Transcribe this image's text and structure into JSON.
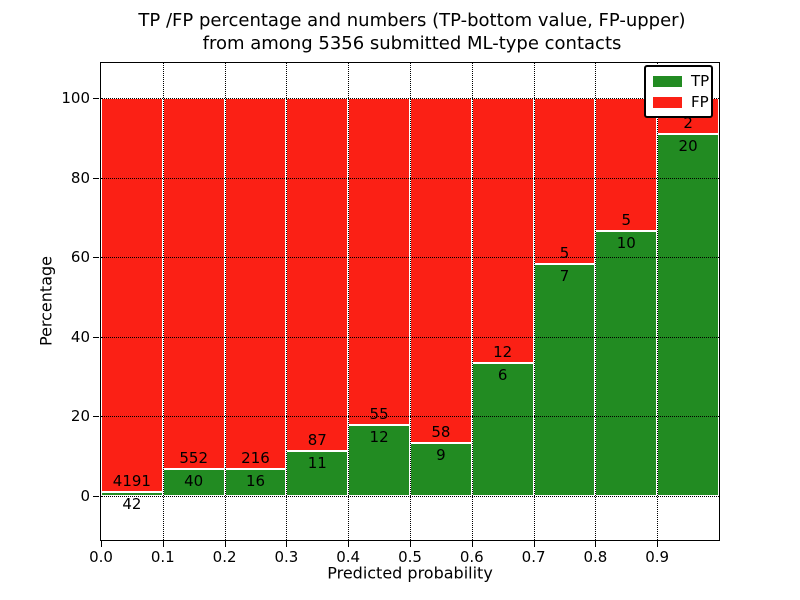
{
  "title": {
    "line1": "TP /FP percentage and numbers (TP-bottom value, FP-upper)",
    "line2": "from among 5356 submitted ML-type contacts"
  },
  "axes": {
    "xlabel": "Predicted probability",
    "ylabel": "Percentage",
    "x_ticks": [
      "0.0",
      "0.1",
      "0.2",
      "0.3",
      "0.4",
      "0.5",
      "0.6",
      "0.7",
      "0.8",
      "0.9"
    ],
    "y_ticks": [
      "0",
      "20",
      "40",
      "60",
      "80",
      "100"
    ]
  },
  "legend": {
    "position": "upper right",
    "entries": [
      {
        "label": "TP",
        "color": "#228b22"
      },
      {
        "label": "FP",
        "color": "#fb2015"
      }
    ]
  },
  "chart_data": {
    "type": "bar",
    "subtype": "stacked-percentage",
    "title": "TP /FP percentage and numbers (TP-bottom value, FP-upper) from among 5356 submitted ML-type contacts",
    "xlabel": "Predicted probability",
    "ylabel": "Percentage",
    "total_contacts": 5356,
    "bin_edges": [
      0.0,
      0.1,
      0.2,
      0.3,
      0.4,
      0.5,
      0.6,
      0.7,
      0.8,
      0.9,
      1.0
    ],
    "series": [
      {
        "name": "TP",
        "color": "#228b22",
        "counts": [
          42,
          40,
          16,
          11,
          12,
          9,
          6,
          7,
          10,
          20
        ]
      },
      {
        "name": "FP",
        "color": "#fb2015",
        "counts": [
          4191,
          552,
          216,
          87,
          55,
          58,
          12,
          5,
          5,
          2
        ]
      }
    ],
    "tp_percent_by_bin": [
      0.99,
      6.76,
      6.9,
      11.22,
      17.91,
      13.43,
      33.33,
      58.33,
      66.67,
      90.91
    ],
    "ylim": [
      0,
      100
    ],
    "y_tick_values": [
      0,
      20,
      40,
      60,
      80,
      100
    ],
    "grid": "dotted black, drawn above bars",
    "legend_position": "upper right"
  },
  "colors": {
    "tp": "#228b22",
    "fp": "#fb2015",
    "bar_edge": "#ffffff",
    "grid": "#000000",
    "text": "#000000",
    "background": "#ffffff"
  }
}
